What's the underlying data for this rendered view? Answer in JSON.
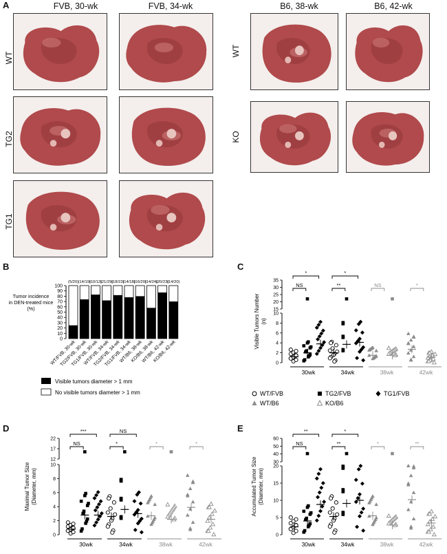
{
  "panel_letters": {
    "a": "A",
    "b": "B",
    "c": "C",
    "d": "D",
    "e": "E"
  },
  "panelA": {
    "col_titles": [
      "FVB, 30-wk",
      "FVB, 34-wk",
      "B6, 38-wk",
      "B6, 42-wk"
    ],
    "row_labels_left": [
      "WT",
      "TG2",
      "TG1"
    ],
    "row_labels_right": [
      "WT",
      "KO"
    ]
  },
  "colors": {
    "liver": "#b04a4c",
    "liver_dark": "#8f3438",
    "liver_light": "#d27e7e",
    "bg": "#f4eeec",
    "gray": "#8c8c8c"
  },
  "chart_data": [
    {
      "panel": "B",
      "type": "bar",
      "stacked": true,
      "ylabel": "Tumor incidence in DEN-treated mice (%)",
      "ylabel_lines": [
        "Tumor incidence",
        "in DEN-treated mice",
        "(%)"
      ],
      "ylim": [
        0,
        100
      ],
      "yticks": [
        "0",
        "10",
        "20",
        "30",
        "40",
        "50",
        "60",
        "70",
        "80",
        "90",
        "100"
      ],
      "categories": [
        "WT/FVB, 30-wk",
        "TG2/FVB, 30-wk",
        "TG1/FVB, 30-wk",
        "WT/FVB, 34-wk",
        "TG2/FVB, 34-wk",
        "TG1/FVB, 34-wk",
        "WT/B6, 38-wk",
        "KO/B6, 38-wk",
        "WT/B6, 42-wk",
        "KO/B6, 42-wk"
      ],
      "counts": [
        "(5/20)",
        "(14/19)",
        "(10/12)",
        "(21/29)",
        "(18/22)",
        "(14/18)",
        "(16/20)",
        "(14/24)",
        "(20/23)",
        "(14/20)"
      ],
      "series": [
        {
          "name": "Visible tumors diameter > 1 mm",
          "values": [
            25,
            74,
            83,
            72,
            82,
            78,
            80,
            58,
            87,
            70
          ]
        },
        {
          "name": "No visible tumors diameter  > 1 mm",
          "values": [
            75,
            26,
            17,
            28,
            18,
            22,
            20,
            42,
            13,
            30
          ]
        }
      ],
      "legend": [
        "Visible tumors diameter > 1 mm",
        "No visible tumors diameter  > 1 mm"
      ]
    },
    {
      "panel": "C",
      "type": "scatter",
      "ylabel": "Visible Tumors Number (n)",
      "ylabel_lines": [
        "Visible Tumors Number",
        "(n)"
      ],
      "yticks_low": [
        "0",
        "2",
        "4",
        "6",
        "8",
        "10"
      ],
      "yticks_high": [
        "15",
        "20",
        "25",
        "30",
        "35"
      ],
      "groups": [
        "30wk",
        "34wk",
        "38wk",
        "42wk"
      ],
      "series_means": [
        1.2,
        2.0,
        3.8,
        2.0,
        3.7,
        4.1,
        1.5,
        1.5,
        2.7,
        1.1
      ],
      "significance": [
        {
          "label": "NS",
          "group": "30wk",
          "level": "low"
        },
        {
          "label": "*",
          "group": "30wk",
          "level": "high"
        },
        {
          "label": "**",
          "group": "34wk",
          "level": "low"
        },
        {
          "label": "*",
          "group": "34wk",
          "level": "high"
        },
        {
          "label": "NS",
          "group": "38wk",
          "level": "low"
        },
        {
          "label": "*",
          "group": "42wk",
          "level": "low"
        }
      ],
      "legend": [
        "WT/FVB",
        "TG2/FVB",
        "TG1/FVB",
        "WT/B6",
        "KO/B6"
      ]
    },
    {
      "panel": "D",
      "type": "scatter",
      "ylabel": "Maximal Tumor Size (Diameter, mm)",
      "ylabel_lines": [
        "Maximal Tumor Size",
        "(Diameter, mm)"
      ],
      "yticks_low": [
        "0",
        "2",
        "4",
        "6",
        "8",
        "10"
      ],
      "yticks_high": [
        "12",
        "17",
        "22"
      ],
      "groups": [
        "30wk",
        "34wk",
        "38wk",
        "42wk"
      ],
      "series_means": [
        0.8,
        2.8,
        2.8,
        2.6,
        3.6,
        3.0,
        2.7,
        2.2,
        3.9,
        2.2
      ],
      "significance": [
        {
          "label": "***",
          "group": "30wk",
          "level": "high"
        },
        {
          "label": "NS",
          "group": "30wk",
          "level": "low"
        },
        {
          "label": "NS",
          "group": "34wk",
          "level": "high"
        },
        {
          "label": "*",
          "group": "34wk",
          "level": "low"
        },
        {
          "label": "*",
          "group": "38wk",
          "level": "low"
        },
        {
          "label": "*",
          "group": "42wk",
          "level": "low"
        }
      ]
    },
    {
      "panel": "E",
      "type": "scatter",
      "ylabel": "Accumulated Tumor Size (Diameter, mm)",
      "ylabel_lines": [
        "Accumulated Tumor Size",
        "(Diameter, mm)"
      ],
      "yticks_low": [
        "0",
        "5",
        "10",
        "15",
        "20"
      ],
      "yticks_high": [
        "30",
        "40",
        "50",
        "60"
      ],
      "groups": [
        "30wk",
        "34wk",
        "38wk",
        "42wk"
      ],
      "series_means": [
        2.3,
        4.0,
        8.8,
        5.3,
        9.1,
        10.0,
        5.5,
        2.8,
        10.2,
        3.4
      ],
      "significance": [
        {
          "label": "**",
          "group": "30wk",
          "level": "high"
        },
        {
          "label": "NS",
          "group": "30wk",
          "level": "low"
        },
        {
          "label": "*",
          "group": "34wk",
          "level": "high"
        },
        {
          "label": "**",
          "group": "34wk",
          "level": "low"
        },
        {
          "label": "*",
          "group": "38wk",
          "level": "low"
        },
        {
          "label": "**",
          "group": "42wk",
          "level": "low"
        }
      ]
    }
  ]
}
